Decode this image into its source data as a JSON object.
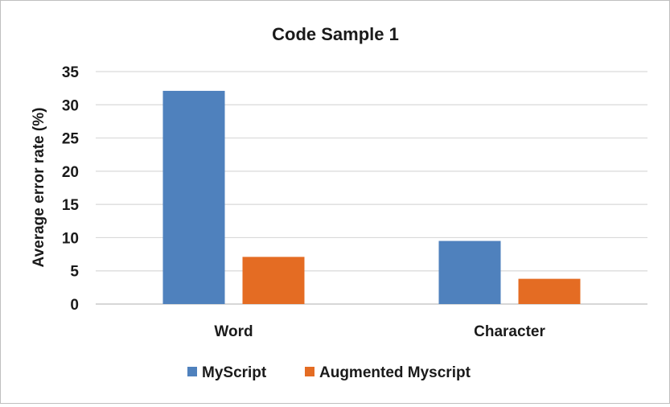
{
  "chart_data": {
    "type": "bar",
    "title": "Code Sample 1",
    "ylabel": "Average error rate (%)",
    "xlabel": "",
    "ylim": [
      0,
      35
    ],
    "yticks": [
      0,
      5,
      10,
      15,
      20,
      25,
      30,
      35
    ],
    "grid": true,
    "legend_position": "bottom",
    "categories": [
      "Word",
      "Character"
    ],
    "series": [
      {
        "name": "MyScript",
        "color": "#4f81bd",
        "values": [
          32.1,
          9.5
        ]
      },
      {
        "name": "Augmented Myscript",
        "color": "#e46c23",
        "values": [
          7.1,
          3.8
        ]
      }
    ]
  }
}
